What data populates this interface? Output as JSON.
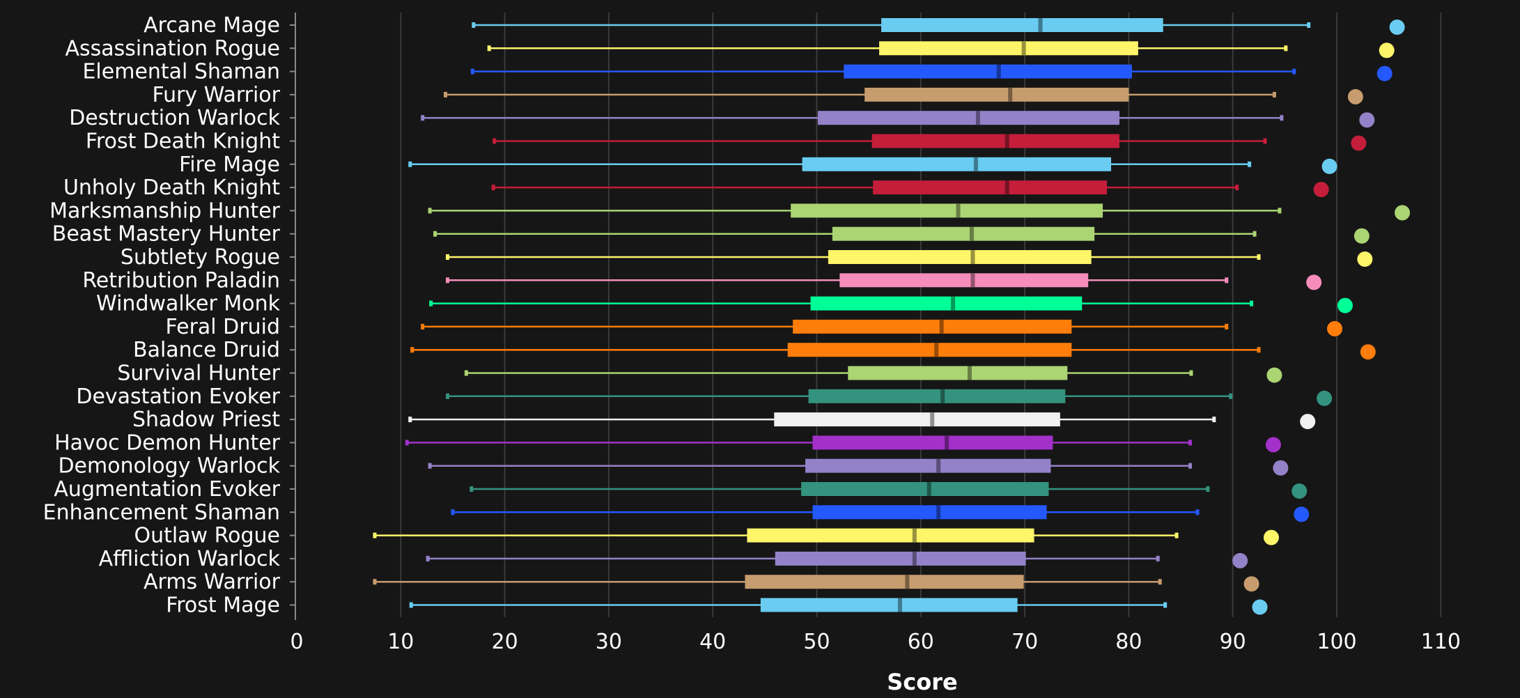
{
  "chart_data": {
    "type": "boxplot",
    "title": "",
    "xlabel": "Score",
    "ylabel": "",
    "xlim": [
      0,
      110
    ],
    "xticks": [
      0,
      10,
      20,
      30,
      40,
      50,
      60,
      70,
      80,
      90,
      100,
      110
    ],
    "grid": true,
    "background": "#161616",
    "series": [
      {
        "name": "Arcane Mage",
        "color": "#69ccf0",
        "min": 17.0,
        "q1": 56.2,
        "median": 71.5,
        "q3": 83.3,
        "max": 97.3,
        "point": 105.8
      },
      {
        "name": "Assassination Rogue",
        "color": "#fff569",
        "min": 18.5,
        "q1": 56.0,
        "median": 69.9,
        "q3": 80.9,
        "max": 95.1,
        "point": 104.8
      },
      {
        "name": "Elemental Shaman",
        "color": "#2459ff",
        "min": 16.9,
        "q1": 52.6,
        "median": 67.5,
        "q3": 80.3,
        "max": 95.9,
        "point": 104.6
      },
      {
        "name": "Fury Warrior",
        "color": "#c79c6e",
        "min": 14.3,
        "q1": 54.6,
        "median": 68.6,
        "q3": 80.0,
        "max": 94.0,
        "point": 101.8
      },
      {
        "name": "Destruction Warlock",
        "color": "#9482c9",
        "min": 12.1,
        "q1": 50.1,
        "median": 65.5,
        "q3": 79.1,
        "max": 94.7,
        "point": 102.9
      },
      {
        "name": "Frost Death Knight",
        "color": "#c41e3a",
        "min": 19.0,
        "q1": 55.3,
        "median": 68.3,
        "q3": 79.1,
        "max": 93.1,
        "point": 102.1
      },
      {
        "name": "Fire Mage",
        "color": "#69ccf0",
        "min": 10.9,
        "q1": 48.6,
        "median": 65.3,
        "q3": 78.3,
        "max": 91.6,
        "point": 99.3
      },
      {
        "name": "Unholy Death Knight",
        "color": "#c41e3a",
        "min": 18.9,
        "q1": 55.4,
        "median": 68.3,
        "q3": 77.9,
        "max": 90.4,
        "point": 98.5
      },
      {
        "name": "Marksmanship Hunter",
        "color": "#abd473",
        "min": 12.8,
        "q1": 47.5,
        "median": 63.6,
        "q3": 77.5,
        "max": 94.5,
        "point": 106.3
      },
      {
        "name": "Beast Mastery Hunter",
        "color": "#abd473",
        "min": 13.3,
        "q1": 51.5,
        "median": 64.9,
        "q3": 76.7,
        "max": 92.1,
        "point": 102.4
      },
      {
        "name": "Subtlety Rogue",
        "color": "#fff569",
        "min": 14.5,
        "q1": 51.1,
        "median": 65.0,
        "q3": 76.4,
        "max": 92.5,
        "point": 102.7
      },
      {
        "name": "Retribution Paladin",
        "color": "#f58cba",
        "min": 14.5,
        "q1": 52.2,
        "median": 65.0,
        "q3": 76.1,
        "max": 89.4,
        "point": 97.8
      },
      {
        "name": "Windwalker Monk",
        "color": "#00ff96",
        "min": 12.9,
        "q1": 49.4,
        "median": 63.1,
        "q3": 75.5,
        "max": 91.8,
        "point": 100.8
      },
      {
        "name": "Feral Druid",
        "color": "#ff7d0a",
        "min": 12.1,
        "q1": 47.7,
        "median": 62.0,
        "q3": 74.5,
        "max": 89.4,
        "point": 99.8
      },
      {
        "name": "Balance Druid",
        "color": "#ff7d0a",
        "min": 11.1,
        "q1": 47.2,
        "median": 61.5,
        "q3": 74.5,
        "max": 92.5,
        "point": 103.0
      },
      {
        "name": "Survival Hunter",
        "color": "#abd473",
        "min": 16.3,
        "q1": 53.0,
        "median": 64.7,
        "q3": 74.1,
        "max": 86.0,
        "point": 94.0
      },
      {
        "name": "Devastation Evoker",
        "color": "#33937f",
        "min": 14.5,
        "q1": 49.2,
        "median": 62.1,
        "q3": 73.9,
        "max": 89.8,
        "point": 98.8
      },
      {
        "name": "Shadow Priest",
        "color": "#f0f0f0",
        "min": 10.9,
        "q1": 45.9,
        "median": 61.1,
        "q3": 73.4,
        "max": 88.2,
        "point": 97.2
      },
      {
        "name": "Havoc Demon Hunter",
        "color": "#a330c9",
        "min": 10.6,
        "q1": 49.6,
        "median": 62.5,
        "q3": 72.7,
        "max": 85.9,
        "point": 93.9
      },
      {
        "name": "Demonology Warlock",
        "color": "#9482c9",
        "min": 12.8,
        "q1": 48.9,
        "median": 61.7,
        "q3": 72.5,
        "max": 85.9,
        "point": 94.6
      },
      {
        "name": "Augmentation Evoker",
        "color": "#33937f",
        "min": 16.8,
        "q1": 48.5,
        "median": 60.8,
        "q3": 72.3,
        "max": 87.6,
        "point": 96.4
      },
      {
        "name": "Enhancement Shaman",
        "color": "#2459ff",
        "min": 15.0,
        "q1": 49.6,
        "median": 61.7,
        "q3": 72.1,
        "max": 86.6,
        "point": 96.6
      },
      {
        "name": "Outlaw Rogue",
        "color": "#fff569",
        "min": 7.5,
        "q1": 43.3,
        "median": 59.4,
        "q3": 70.9,
        "max": 84.6,
        "point": 93.7
      },
      {
        "name": "Affliction Warlock",
        "color": "#9482c9",
        "min": 12.6,
        "q1": 46.0,
        "median": 59.4,
        "q3": 70.1,
        "max": 82.8,
        "point": 90.7
      },
      {
        "name": "Arms Warrior",
        "color": "#c79c6e",
        "min": 7.5,
        "q1": 43.1,
        "median": 58.7,
        "q3": 69.9,
        "max": 83.0,
        "point": 91.8
      },
      {
        "name": "Frost Mage",
        "color": "#69ccf0",
        "min": 11.0,
        "q1": 44.6,
        "median": 58.0,
        "q3": 69.3,
        "max": 83.5,
        "point": 92.6
      }
    ]
  }
}
